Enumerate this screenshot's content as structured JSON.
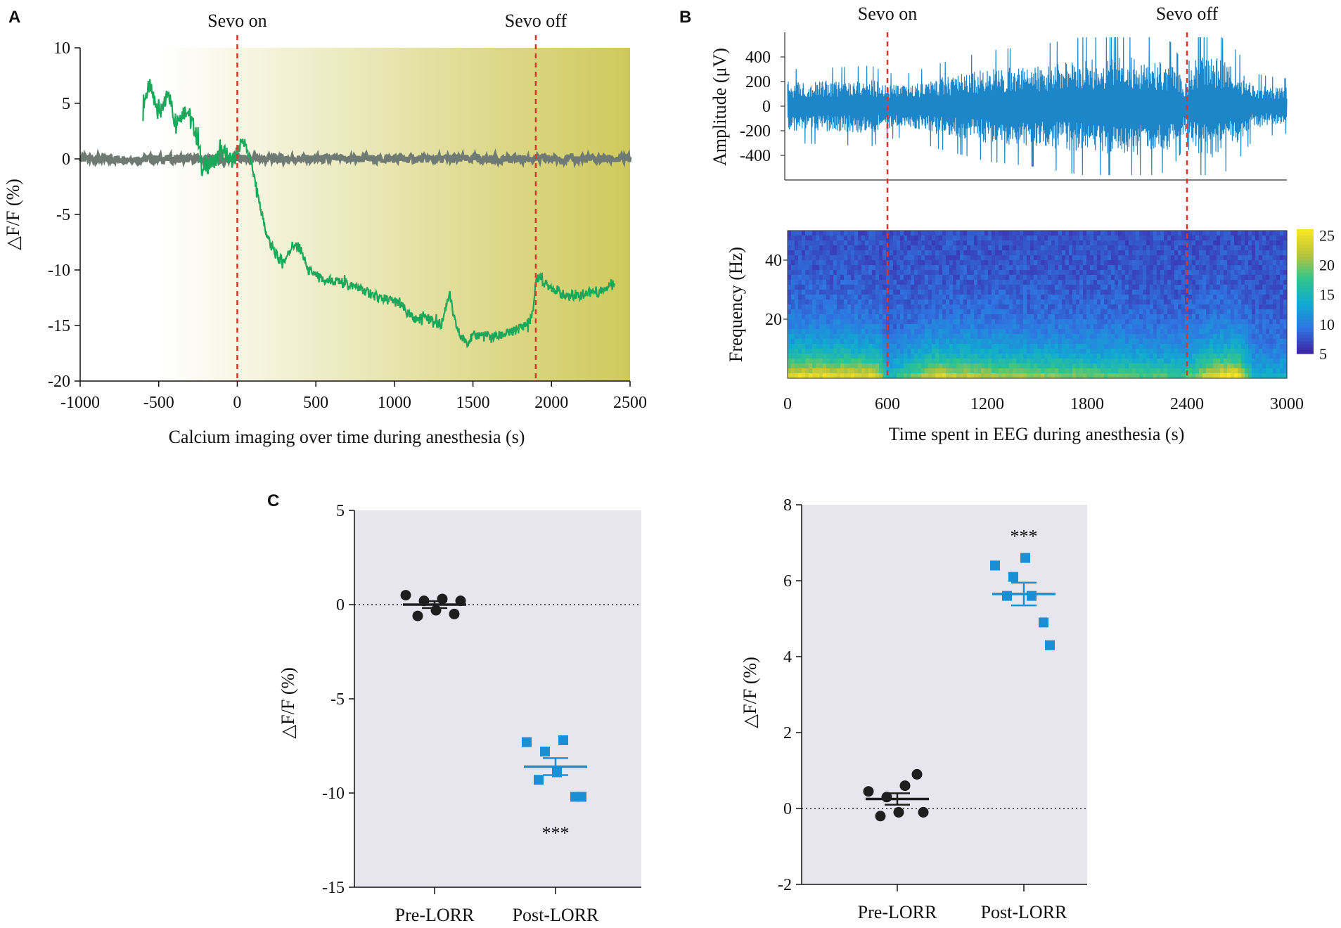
{
  "panels": {
    "a": {
      "label": "A",
      "chart_data": {
        "type": "line",
        "xlabel": "Calcium imaging over time during anesthesia (s)",
        "ylabel": "△F/F (%)",
        "xlim": [
          -1000,
          2500
        ],
        "ylim": [
          -20,
          10
        ],
        "xticks": [
          "-1000",
          "-500",
          "0",
          "500",
          "1000",
          "1500",
          "2000",
          "2500"
        ],
        "yticks": [
          "10",
          "5",
          "0",
          "-5",
          "-10",
          "-15",
          "-20"
        ],
        "annotations": [
          {
            "text": "Sevo on",
            "x": 0
          },
          {
            "text": "Sevo off",
            "x": 1900
          }
        ],
        "series": [
          {
            "color": "#1aa85a",
            "x": [
              -600,
              -560,
              -520,
              -480,
              -440,
              -400,
              -360,
              -320,
              -280,
              -250,
              -220,
              -180,
              -140,
              -100,
              -60,
              -20,
              0,
              30,
              60,
              90,
              120,
              150,
              180,
              210,
              240,
              270,
              300,
              350,
              400,
              450,
              500,
              550,
              600,
              700,
              800,
              900,
              1000,
              1050,
              1100,
              1150,
              1200,
              1250,
              1300,
              1350,
              1380,
              1420,
              1460,
              1500,
              1550,
              1600,
              1650,
              1700,
              1750,
              1800,
              1850,
              1880,
              1900,
              1930,
              1960,
              2000,
              2050,
              2100,
              2150,
              2200,
              2250,
              2300,
              2350,
              2400
            ],
            "y": [
              5,
              6.5,
              5.2,
              4.0,
              6.2,
              3.5,
              4.0,
              4.5,
              3.0,
              1.5,
              -1.0,
              -0.5,
              -0.2,
              0.6,
              0.3,
              -0.2,
              0.5,
              1.8,
              1.0,
              -0.5,
              -2.5,
              -4.5,
              -6.5,
              -7.5,
              -8.5,
              -9.0,
              -9.2,
              -7.8,
              -8.0,
              -10.0,
              -10.5,
              -11.0,
              -11.0,
              -11.2,
              -11.8,
              -12.5,
              -12.8,
              -13.3,
              -14.2,
              -14.5,
              -14.0,
              -14.8,
              -14.9,
              -12.0,
              -14.5,
              -16.0,
              -16.5,
              -16.0,
              -15.8,
              -16.0,
              -16.0,
              -15.8,
              -15.6,
              -15.2,
              -14.8,
              -14.0,
              -11.0,
              -10.5,
              -11.3,
              -11.5,
              -12.0,
              -12.5,
              -12.2,
              -12.3,
              -11.8,
              -12.0,
              -11.5,
              -11.0
            ]
          },
          {
            "color": "#707a75",
            "x": [
              -1000,
              2500
            ],
            "y": [
              0,
              0
            ]
          }
        ],
        "background": {
          "from_color": "#ffffff",
          "to_color": "#cfc95c"
        }
      }
    },
    "b": {
      "label": "B",
      "eeg_chart_data": {
        "type": "line",
        "xlabel": "",
        "ylabel": "Amplitude (μV)",
        "xlim": [
          0,
          3000
        ],
        "ylim": [
          -600,
          600
        ],
        "yticks": [
          "400",
          "200",
          "0",
          "-200",
          "-400"
        ],
        "annotations": [
          {
            "text": "Sevo on",
            "x": 600
          },
          {
            "text": "Sevo off",
            "x": 2400
          }
        ],
        "series": [
          {
            "color": "#1c86c9",
            "envelope_x": [
              0,
              300,
              500,
              600,
              700,
              900,
              1200,
              1500,
              1800,
              2100,
              2300,
              2400,
              2450,
              2550,
              2700,
              2800,
              2900,
              3000
            ],
            "envelope_amp": [
              200,
              210,
              220,
              180,
              170,
              230,
              300,
              330,
              380,
              400,
              350,
              200,
              380,
              420,
              300,
              180,
              160,
              150
            ]
          }
        ]
      },
      "spectrogram_chart_data": {
        "type": "heatmap",
        "xlabel": "Time spent in EEG during anesthesia (s)",
        "ylabel": "Frequency (Hz)",
        "xlim": [
          0,
          3000
        ],
        "ylim": [
          0,
          50
        ],
        "xticks": [
          "0",
          "600",
          "1200",
          "1800",
          "2400",
          "3000"
        ],
        "yticks": [
          "40",
          "20"
        ],
        "colorbar": {
          "min": 5,
          "max": 26,
          "ticks": [
            "25",
            "20",
            "15",
            "10",
            "5"
          ],
          "colormap": "parula"
        },
        "lowband_power_x": [
          0,
          300,
          550,
          600,
          700,
          900,
          1200,
          1500,
          1800,
          2100,
          2350,
          2400,
          2550,
          2700,
          2800,
          2900,
          3000
        ],
        "lowband_power": [
          0.9,
          0.9,
          0.85,
          0.35,
          0.55,
          0.85,
          0.75,
          0.7,
          0.65,
          0.6,
          0.55,
          0.55,
          0.9,
          0.95,
          0.4,
          0.35,
          0.35
        ]
      }
    },
    "c": {
      "label": "C",
      "left": {
        "chart_data": {
          "type": "scatter",
          "ylabel": "△F/F (%)",
          "ylim": [
            -15,
            5
          ],
          "yticks": [
            "5",
            "0",
            "-5",
            "-10",
            "-15"
          ],
          "categories": [
            "Pre-LORR",
            "Post-LORR"
          ],
          "series": [
            {
              "group": "Pre-LORR",
              "marker": "circle",
              "color": "#1e1e1e",
              "values": [
                0.5,
                -0.6,
                0.2,
                -0.3,
                0.3,
                -0.5,
                0.2
              ],
              "mean": 0.0,
              "sem": 0.18
            },
            {
              "group": "Post-LORR",
              "marker": "square",
              "color": "#1b8fd6",
              "values": [
                -7.3,
                -9.3,
                -7.8,
                -8.9,
                -7.2,
                -10.2,
                -10.2
              ],
              "mean": -8.6,
              "sem": 0.45
            }
          ],
          "significance": "***"
        }
      },
      "right": {
        "chart_data": {
          "type": "scatter",
          "ylabel": "△F/F (%)",
          "ylim": [
            -2,
            8
          ],
          "yticks": [
            "8",
            "6",
            "4",
            "2",
            "0",
            "-2"
          ],
          "categories": [
            "Pre-LORR",
            "Post-LORR"
          ],
          "series": [
            {
              "group": "Pre-LORR",
              "marker": "circle",
              "color": "#1e1e1e",
              "values": [
                0.45,
                -0.2,
                0.3,
                -0.1,
                0.6,
                0.9,
                -0.1
              ],
              "mean": 0.25,
              "sem": 0.15
            },
            {
              "group": "Post-LORR",
              "marker": "square",
              "color": "#1b8fd6",
              "values": [
                6.4,
                5.6,
                6.1,
                6.6,
                5.6,
                4.9,
                4.3
              ],
              "mean": 5.65,
              "sem": 0.3
            }
          ],
          "significance": "***"
        }
      }
    }
  }
}
